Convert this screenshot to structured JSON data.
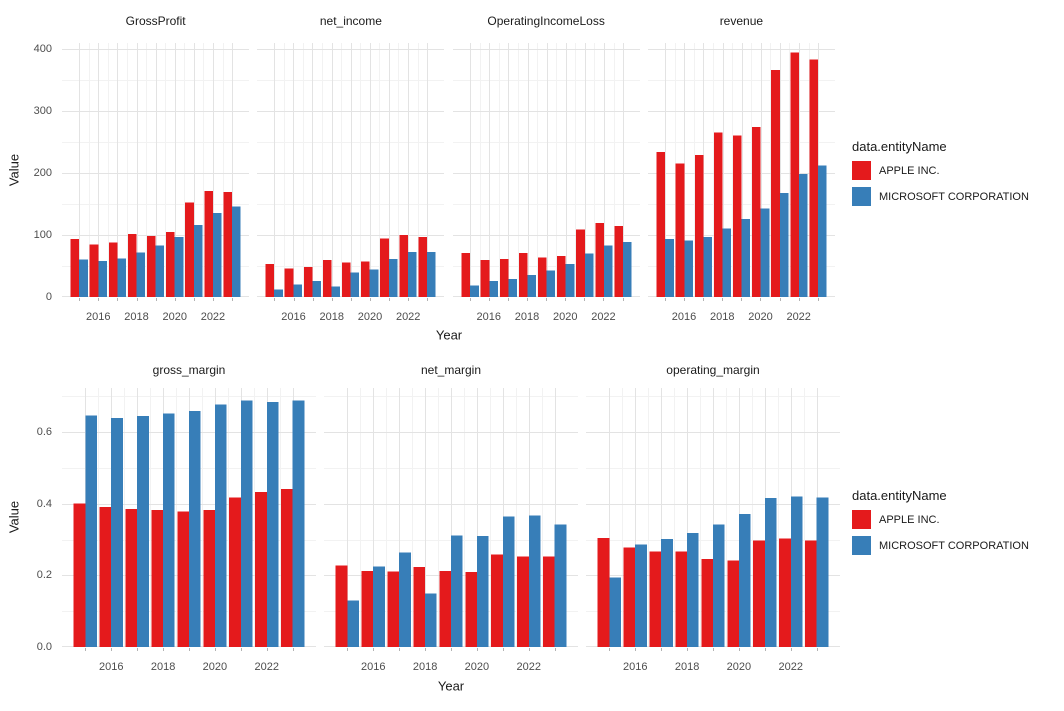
{
  "figure": {
    "legend_title": "data.entityName",
    "series": [
      {
        "name": "APPLE INC.",
        "color": "#E41A1C"
      },
      {
        "name": "MICROSOFT CORPORATION",
        "color": "#377EB8"
      }
    ],
    "background_color": "#FFFFFF"
  },
  "chart_data": [
    {
      "type": "bar",
      "xlabel": "Year",
      "ylabel": "Value",
      "x": [
        2015,
        2016,
        2017,
        2018,
        2019,
        2020,
        2021,
        2022,
        2023
      ],
      "x_ticks_at": [
        2016,
        2018,
        2020,
        2022
      ],
      "x_tick_labels": [
        "2016",
        "2018",
        "2020",
        "2022"
      ],
      "y_ticks": [
        0,
        100,
        200,
        300,
        400
      ],
      "y_tick_labels": [
        "0",
        "100",
        "200",
        "300",
        "400"
      ],
      "y_minor_ticks": [
        50,
        150,
        250,
        350
      ],
      "ylim": [
        0,
        410
      ],
      "grid": true,
      "legend_position": "right",
      "facets": [
        {
          "title": "GrossProfit",
          "series": [
            {
              "name": "APPLE INC.",
              "values": [
                93.6,
                84.3,
                88.2,
                101.8,
                98.4,
                105.0,
                152.8,
                170.8,
                169.1
              ]
            },
            {
              "name": "MICROSOFT CORPORATION",
              "values": [
                60.5,
                58.4,
                62.3,
                72.0,
                82.9,
                96.9,
                115.9,
                135.6,
                146.1
              ]
            }
          ]
        },
        {
          "title": "net_income",
          "series": [
            {
              "name": "APPLE INC.",
              "values": [
                53.4,
                45.7,
                48.4,
                59.5,
                55.3,
                57.4,
                94.7,
                99.8,
                97.0
              ]
            },
            {
              "name": "MICROSOFT CORPORATION",
              "values": [
                12.2,
                20.5,
                25.5,
                16.6,
                39.2,
                44.3,
                61.3,
                72.7,
                72.4
              ]
            }
          ]
        },
        {
          "title": "OperatingIncomeLoss",
          "series": [
            {
              "name": "APPLE INC.",
              "values": [
                71.2,
                60.0,
                61.3,
                70.9,
                63.9,
                66.3,
                108.9,
                119.4,
                114.3
              ]
            },
            {
              "name": "MICROSOFT CORPORATION",
              "values": [
                18.2,
                26.1,
                29.0,
                35.1,
                43.0,
                53.0,
                69.9,
                83.4,
                88.5
              ]
            }
          ]
        },
        {
          "title": "revenue",
          "series": [
            {
              "name": "APPLE INC.",
              "values": [
                233.7,
                215.6,
                229.2,
                265.6,
                260.2,
                274.5,
                365.8,
                394.3,
                383.3
              ]
            },
            {
              "name": "MICROSOFT CORPORATION",
              "values": [
                93.6,
                91.2,
                96.6,
                110.4,
                125.8,
                143.0,
                168.1,
                198.3,
                211.9
              ]
            }
          ]
        }
      ]
    },
    {
      "type": "bar",
      "xlabel": "Year",
      "ylabel": "Value",
      "x": [
        2015,
        2016,
        2017,
        2018,
        2019,
        2020,
        2021,
        2022,
        2023
      ],
      "x_ticks_at": [
        2016,
        2018,
        2020,
        2022
      ],
      "x_tick_labels": [
        "2016",
        "2018",
        "2020",
        "2022"
      ],
      "y_ticks": [
        0,
        0.2,
        0.4,
        0.6
      ],
      "y_tick_labels": [
        "0.0",
        "0.2",
        "0.4",
        "0.6"
      ],
      "y_minor_ticks": [
        0.1,
        0.3,
        0.5,
        0.7
      ],
      "ylim": [
        0,
        0.72
      ],
      "grid": true,
      "legend_position": "right",
      "facets": [
        {
          "title": "gross_margin",
          "series": [
            {
              "name": "APPLE INC.",
              "values": [
                0.401,
                0.391,
                0.385,
                0.383,
                0.378,
                0.382,
                0.418,
                0.433,
                0.441
              ]
            },
            {
              "name": "MICROSOFT CORPORATION",
              "values": [
                0.647,
                0.64,
                0.645,
                0.652,
                0.659,
                0.678,
                0.689,
                0.684,
                0.689
              ]
            }
          ]
        },
        {
          "title": "net_margin",
          "series": [
            {
              "name": "APPLE INC.",
              "values": [
                0.228,
                0.212,
                0.211,
                0.224,
                0.212,
                0.209,
                0.259,
                0.253,
                0.253
              ]
            },
            {
              "name": "MICROSOFT CORPORATION",
              "values": [
                0.13,
                0.225,
                0.264,
                0.15,
                0.312,
                0.31,
                0.365,
                0.367,
                0.342
              ]
            }
          ]
        },
        {
          "title": "operating_margin",
          "series": [
            {
              "name": "APPLE INC.",
              "values": [
                0.305,
                0.278,
                0.267,
                0.267,
                0.246,
                0.241,
                0.298,
                0.303,
                0.298
              ]
            },
            {
              "name": "MICROSOFT CORPORATION",
              "values": [
                0.194,
                0.286,
                0.301,
                0.318,
                0.342,
                0.371,
                0.416,
                0.42,
                0.418
              ]
            }
          ]
        }
      ]
    }
  ]
}
